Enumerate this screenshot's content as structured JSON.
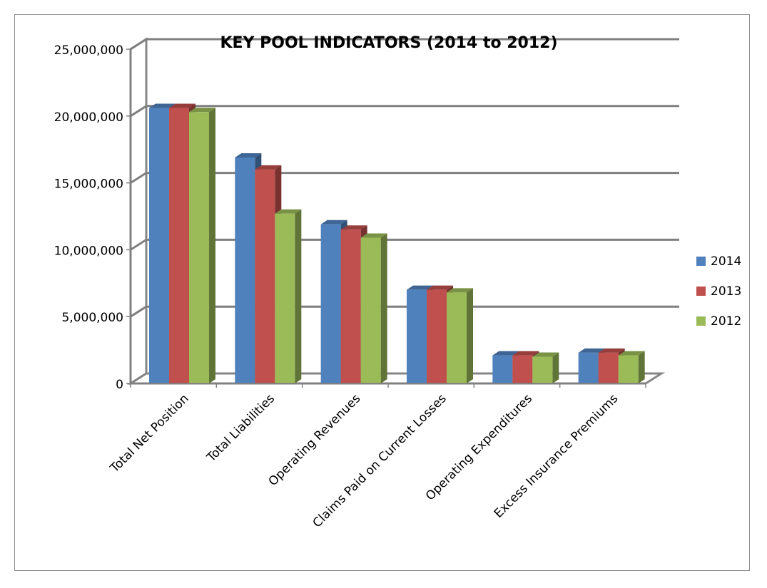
{
  "chart_data": {
    "type": "bar",
    "title": "KEY POOL INDICATORS (2014 to 2012)",
    "xlabel": "",
    "ylabel": "",
    "ylim": [
      0,
      25000000
    ],
    "y_ticks": [
      0,
      5000000,
      10000000,
      15000000,
      20000000,
      25000000
    ],
    "y_tick_labels": [
      "0",
      "5,000,000",
      "10,000,000",
      "15,000,000",
      "20,000,000",
      "25,000,000"
    ],
    "categories": [
      "Total Net Position",
      "Total Liabilities",
      "Operating Revenues",
      "Claims Paid on Current Losses",
      "Operating Expenditures",
      "Excess Insurance Premiums"
    ],
    "series": [
      {
        "name": "2014",
        "color": "#4f81bd",
        "values": [
          20600000,
          16900000,
          11900000,
          7000000,
          2100000,
          2300000
        ]
      },
      {
        "name": "2013",
        "color": "#c0504d",
        "values": [
          20600000,
          16000000,
          11500000,
          7000000,
          2100000,
          2300000
        ]
      },
      {
        "name": "2012",
        "color": "#9bbb59",
        "values": [
          20300000,
          12700000,
          10900000,
          6800000,
          2000000,
          2100000
        ]
      }
    ],
    "grid": true,
    "legend_position": "right",
    "style": "3d-clustered-column"
  }
}
